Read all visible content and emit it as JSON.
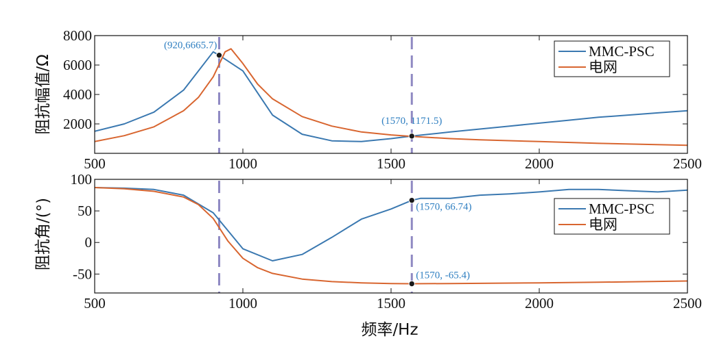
{
  "colors": {
    "series1": "#3a78b0",
    "series2": "#d8652f",
    "marker_line": "#8e88c2",
    "annotation": "#2f7fc1",
    "axes": "#111111"
  },
  "x_label": "频率/Hz",
  "chart_data": [
    {
      "type": "line",
      "ylabel": "阻抗幅值/Ω",
      "xlim": [
        500,
        2500
      ],
      "ylim": [
        0,
        8000
      ],
      "xticks": [
        "500",
        "1000",
        "1500",
        "2000",
        "2500"
      ],
      "yticks": [
        "2000",
        "4000",
        "6000",
        "8000"
      ],
      "ytick_values": [
        2000,
        4000,
        6000,
        8000
      ],
      "legend_position": "top-right",
      "series": [
        {
          "name": "MMC-PSC",
          "x": [
            500,
            600,
            700,
            800,
            900,
            920,
            1000,
            1100,
            1200,
            1300,
            1400,
            1500,
            1570,
            1700,
            1800,
            1900,
            2000,
            2100,
            2200,
            2300,
            2400,
            2500
          ],
          "y": [
            1500,
            2000,
            2800,
            4300,
            6900,
            6665.7,
            5600,
            2600,
            1300,
            850,
            800,
            1000,
            1171.5,
            1450,
            1650,
            1850,
            2050,
            2250,
            2450,
            2600,
            2750,
            2900
          ]
        },
        {
          "name": "电网",
          "x": [
            500,
            600,
            700,
            800,
            850,
            900,
            940,
            960,
            1000,
            1050,
            1100,
            1200,
            1300,
            1400,
            1500,
            1570,
            1700,
            1800,
            2000,
            2200,
            2500
          ],
          "y": [
            800,
            1200,
            1800,
            2900,
            3800,
            5200,
            6900,
            7100,
            6100,
            4700,
            3700,
            2500,
            1850,
            1450,
            1250,
            1150,
            1000,
            920,
            800,
            680,
            550
          ]
        }
      ],
      "annotations": [
        {
          "label": "(920,6665.7)",
          "x": 920,
          "y": 6665.7
        },
        {
          "label": "(1570, 1171.5)",
          "x": 1570,
          "y": 1171.5
        }
      ],
      "vlines": [
        920,
        1570
      ]
    },
    {
      "type": "line",
      "ylabel": "阻抗角/(°)",
      "xlim": [
        500,
        2500
      ],
      "ylim": [
        -80,
        100
      ],
      "xticks": [
        "500",
        "1000",
        "1500",
        "2000",
        "2500"
      ],
      "yticks": [
        "-50",
        "0",
        "50",
        "100"
      ],
      "ytick_values": [
        -50,
        0,
        50,
        100
      ],
      "legend_position": "middle-right",
      "series": [
        {
          "name": "MMC-PSC",
          "x": [
            500,
            600,
            700,
            800,
            900,
            1000,
            1100,
            1200,
            1300,
            1400,
            1500,
            1570,
            1600,
            1700,
            1800,
            1900,
            2000,
            2100,
            2200,
            2300,
            2400,
            2500
          ],
          "y": [
            87,
            86,
            84,
            75,
            47,
            -10,
            -29,
            -19,
            8,
            37,
            53,
            66.74,
            70,
            70,
            75,
            77,
            80,
            84,
            84,
            82,
            80,
            83
          ]
        },
        {
          "name": "电网",
          "x": [
            500,
            600,
            700,
            800,
            850,
            900,
            950,
            1000,
            1050,
            1100,
            1200,
            1300,
            1400,
            1500,
            1570,
            1700,
            2000,
            2200,
            2500
          ],
          "y": [
            87,
            85,
            81,
            72,
            60,
            38,
            2,
            -25,
            -40,
            -49,
            -58,
            -62,
            -64,
            -65,
            -65.4,
            -65,
            -64,
            -63,
            -61
          ]
        }
      ],
      "annotations": [
        {
          "label": "(1570, 66.74)",
          "x": 1570,
          "y": 66.74
        },
        {
          "label": "(1570, -65.4)",
          "x": 1570,
          "y": -65.4
        }
      ],
      "vlines": [
        920,
        1570
      ]
    }
  ]
}
